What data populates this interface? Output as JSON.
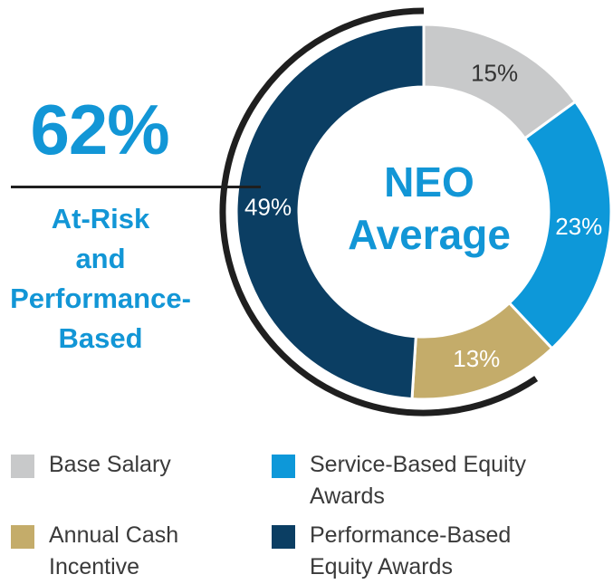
{
  "callout": {
    "percent": "62%",
    "label_lines": [
      "At-Risk",
      "and",
      "Performance-",
      "Based"
    ]
  },
  "center": {
    "title_lines": [
      "NEO",
      "Average"
    ]
  },
  "colors": {
    "accent": "#1296d6",
    "ring_arc": "#1f1f1f"
  },
  "chart_data": {
    "type": "pie",
    "donut": true,
    "title": "NEO Average",
    "slices": [
      {
        "label": "Base Salary",
        "value": 15,
        "value_label": "15%",
        "color": "#c8c9ca",
        "label_color": "#333333"
      },
      {
        "label": "Service-Based Equity Awards",
        "value": 23,
        "value_label": "23%",
        "color": "#0d98d9",
        "label_color": "#ffffff"
      },
      {
        "label": "Annual Cash Incentive",
        "value": 13,
        "value_label": "13%",
        "color": "#c4ac6a",
        "label_color": "#ffffff"
      },
      {
        "label": "Performance-Based Equity Awards",
        "value": 49,
        "value_label": "49%",
        "color": "#0b3e63",
        "label_color": "#ffffff"
      }
    ],
    "legend_placement": "bottom"
  },
  "legend": {
    "items": [
      {
        "lines": [
          "Base Salary"
        ],
        "color": "#c8c9ca"
      },
      {
        "lines": [
          "Service-Based Equity",
          "Awards"
        ],
        "color": "#0d98d9"
      },
      {
        "lines": [
          "Annual Cash",
          "Incentive"
        ],
        "color": "#c4ac6a"
      },
      {
        "lines": [
          "Performance-Based",
          "Equity Awards"
        ],
        "color": "#0b3e63"
      }
    ]
  }
}
